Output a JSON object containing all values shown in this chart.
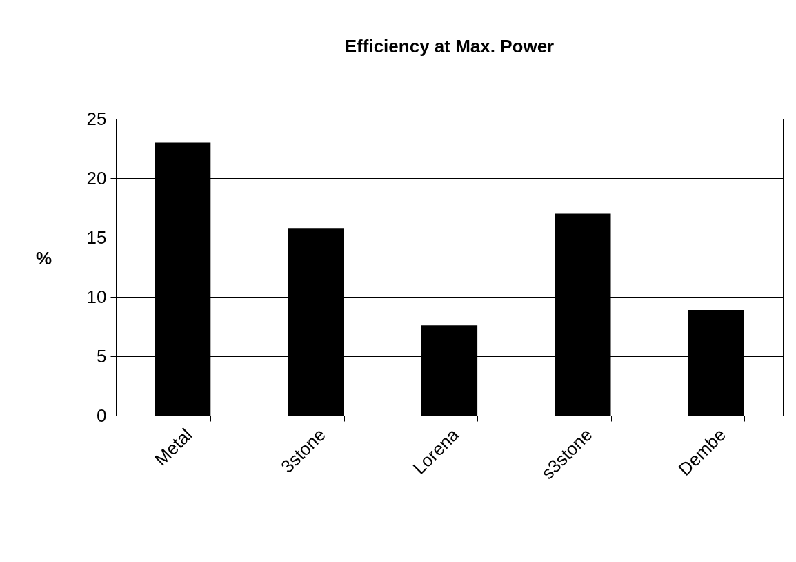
{
  "chart_data": {
    "type": "bar",
    "title": "Efficiency at Max. Power",
    "ylabel": "%",
    "categories": [
      "Metal",
      "3stone",
      "Lorena",
      "s3stone",
      "Dembe"
    ],
    "values": [
      23,
      15.8,
      7.6,
      17.0,
      8.9
    ],
    "color": "#000000",
    "ylim": [
      0,
      25
    ],
    "yticks": [
      0,
      5,
      10,
      15,
      20,
      25
    ],
    "grid": "y"
  }
}
